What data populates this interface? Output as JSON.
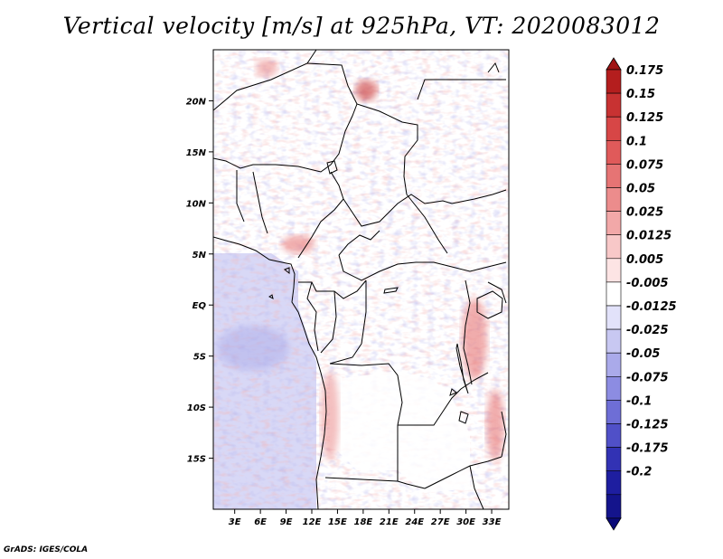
{
  "title": "Vertical velocity [m/s] at 925hPa, VT: 2020083012",
  "footer": "GrADS: IGES/COLA",
  "map": {
    "lat_labels": [
      "20N",
      "15N",
      "10N",
      "5N",
      "EQ",
      "5S",
      "10S",
      "15S"
    ],
    "lat_values": [
      20,
      15,
      10,
      5,
      0,
      -5,
      -10,
      -15
    ],
    "lon_labels": [
      "3E",
      "6E",
      "9E",
      "12E",
      "15E",
      "18E",
      "21E",
      "24E",
      "27E",
      "30E",
      "33E"
    ],
    "lon_values": [
      3,
      6,
      9,
      12,
      15,
      18,
      21,
      24,
      27,
      30,
      33
    ],
    "lon_range": [
      0.5,
      35
    ],
    "lat_range": [
      -20,
      25
    ]
  },
  "colorbar": {
    "labels": [
      "0.175",
      "0.15",
      "0.125",
      "0.1",
      "0.075",
      "0.05",
      "0.025",
      "0.0125",
      "0.005",
      "-0.005",
      "-0.0125",
      "-0.025",
      "-0.05",
      "-0.075",
      "-0.1",
      "-0.125",
      "-0.175",
      "-0.2"
    ],
    "colors": [
      "#b41e1e",
      "#c83232",
      "#d74646",
      "#e05a5a",
      "#e67474",
      "#ec8c8c",
      "#f2a8a8",
      "#f8c8c8",
      "#fde4e4",
      "#ffffff",
      "#e2e2fa",
      "#c8c8f2",
      "#aaaaea",
      "#8c8ce2",
      "#6e6ed6",
      "#5050c8",
      "#3232b4",
      "#1e1ea0",
      "#14148c"
    ],
    "top_color": "#a01414",
    "bottom_color": "#0a0a78"
  }
}
